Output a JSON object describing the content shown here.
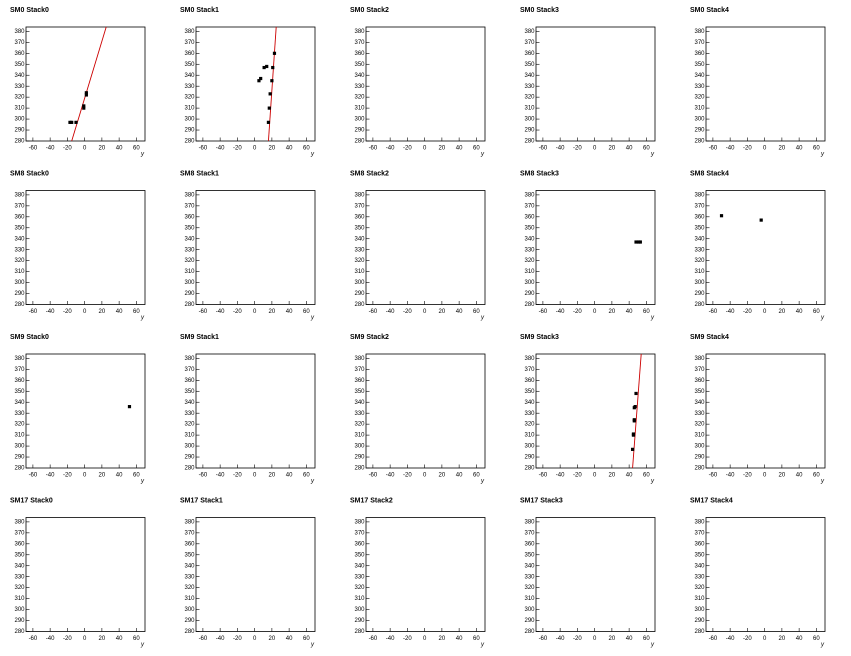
{
  "chart_data": [
    {
      "type": "scatter",
      "title": "SM0 Stack0",
      "x_label": "y",
      "color": "#000000",
      "fit_color": "#cc0000",
      "x": [
        -17,
        -15,
        -10,
        -1,
        -1,
        2,
        2
      ],
      "y": [
        297,
        297,
        297,
        310,
        312,
        322,
        324
      ],
      "fit_x": [
        -15,
        25
      ],
      "fit_y": [
        280,
        384
      ],
      "xlim": [
        -68,
        70
      ],
      "ylim": [
        280,
        384
      ],
      "xticks": [
        -60,
        -40,
        -20,
        0,
        20,
        40,
        60
      ],
      "yticks": [
        280,
        290,
        300,
        310,
        320,
        330,
        340,
        350,
        360,
        370,
        380
      ]
    },
    {
      "type": "scatter",
      "title": "SM0 Stack1",
      "x_label": "y",
      "color": "#000000",
      "fit_color": "#cc0000",
      "x": [
        5,
        7,
        11,
        14,
        16,
        17,
        18,
        20,
        21,
        23
      ],
      "y": [
        335,
        337,
        347,
        348,
        297,
        310,
        323,
        335,
        347,
        360
      ],
      "fit_x": [
        16,
        25
      ],
      "fit_y": [
        280,
        384
      ],
      "xlim": [
        -68,
        70
      ],
      "ylim": [
        280,
        384
      ],
      "xticks": [
        -60,
        -40,
        -20,
        0,
        20,
        40,
        60
      ],
      "yticks": [
        280,
        290,
        300,
        310,
        320,
        330,
        340,
        350,
        360,
        370,
        380
      ]
    },
    {
      "type": "scatter",
      "title": "SM0 Stack2",
      "x_label": "y",
      "color": "#000000",
      "x": [],
      "y": [],
      "xlim": [
        -68,
        70
      ],
      "ylim": [
        280,
        384
      ],
      "xticks": [
        -60,
        -40,
        -20,
        0,
        20,
        40,
        60
      ],
      "yticks": [
        280,
        290,
        300,
        310,
        320,
        330,
        340,
        350,
        360,
        370,
        380
      ]
    },
    {
      "type": "scatter",
      "title": "SM0 Stack3",
      "x_label": "y",
      "color": "#000000",
      "x": [],
      "y": [],
      "xlim": [
        -68,
        70
      ],
      "ylim": [
        280,
        384
      ],
      "xticks": [
        -60,
        -40,
        -20,
        0,
        20,
        40,
        60
      ],
      "yticks": [
        280,
        290,
        300,
        310,
        320,
        330,
        340,
        350,
        360,
        370,
        380
      ]
    },
    {
      "type": "scatter",
      "title": "SM0 Stack4",
      "x_label": "y",
      "color": "#000000",
      "x": [],
      "y": [],
      "xlim": [
        -68,
        70
      ],
      "ylim": [
        280,
        384
      ],
      "xticks": [
        -60,
        -40,
        -20,
        0,
        20,
        40,
        60
      ],
      "yticks": [
        280,
        290,
        300,
        310,
        320,
        330,
        340,
        350,
        360,
        370,
        380
      ]
    },
    {
      "type": "scatter",
      "title": "SM8 Stack0",
      "x_label": "y",
      "color": "#000000",
      "x": [],
      "y": [],
      "xlim": [
        -68,
        70
      ],
      "ylim": [
        280,
        384
      ],
      "xticks": [
        -60,
        -40,
        -20,
        0,
        20,
        40,
        60
      ],
      "yticks": [
        280,
        290,
        300,
        310,
        320,
        330,
        340,
        350,
        360,
        370,
        380
      ]
    },
    {
      "type": "scatter",
      "title": "SM8 Stack1",
      "x_label": "y",
      "color": "#000000",
      "x": [],
      "y": [],
      "xlim": [
        -68,
        70
      ],
      "ylim": [
        280,
        384
      ],
      "xticks": [
        -60,
        -40,
        -20,
        0,
        20,
        40,
        60
      ],
      "yticks": [
        280,
        290,
        300,
        310,
        320,
        330,
        340,
        350,
        360,
        370,
        380
      ]
    },
    {
      "type": "scatter",
      "title": "SM8 Stack2",
      "x_label": "y",
      "color": "#000000",
      "x": [],
      "y": [],
      "xlim": [
        -68,
        70
      ],
      "ylim": [
        280,
        384
      ],
      "xticks": [
        -60,
        -40,
        -20,
        0,
        20,
        40,
        60
      ],
      "yticks": [
        280,
        290,
        300,
        310,
        320,
        330,
        340,
        350,
        360,
        370,
        380
      ]
    },
    {
      "type": "scatter",
      "title": "SM8 Stack3",
      "x_label": "y",
      "color": "#000000",
      "x": [
        48,
        51,
        53
      ],
      "y": [
        337,
        337,
        337
      ],
      "xlim": [
        -68,
        70
      ],
      "ylim": [
        280,
        384
      ],
      "xticks": [
        -60,
        -40,
        -20,
        0,
        20,
        40,
        60
      ],
      "yticks": [
        280,
        290,
        300,
        310,
        320,
        330,
        340,
        350,
        360,
        370,
        380
      ]
    },
    {
      "type": "scatter",
      "title": "SM8 Stack4",
      "x_label": "y",
      "color": "#000000",
      "x": [
        -50,
        -4
      ],
      "y": [
        361,
        357
      ],
      "xlim": [
        -68,
        70
      ],
      "ylim": [
        280,
        384
      ],
      "xticks": [
        -60,
        -40,
        -20,
        0,
        20,
        40,
        60
      ],
      "yticks": [
        280,
        290,
        300,
        310,
        320,
        330,
        340,
        350,
        360,
        370,
        380
      ]
    },
    {
      "type": "scatter",
      "title": "SM9 Stack0",
      "x_label": "y",
      "color": "#000000",
      "x": [
        52
      ],
      "y": [
        336
      ],
      "xlim": [
        -68,
        70
      ],
      "ylim": [
        280,
        384
      ],
      "xticks": [
        -60,
        -40,
        -20,
        0,
        20,
        40,
        60
      ],
      "yticks": [
        280,
        290,
        300,
        310,
        320,
        330,
        340,
        350,
        360,
        370,
        380
      ]
    },
    {
      "type": "scatter",
      "title": "SM9 Stack1",
      "x_label": "y",
      "color": "#000000",
      "x": [],
      "y": [],
      "xlim": [
        -68,
        70
      ],
      "ylim": [
        280,
        384
      ],
      "xticks": [
        -60,
        -40,
        -20,
        0,
        20,
        40,
        60
      ],
      "yticks": [
        280,
        290,
        300,
        310,
        320,
        330,
        340,
        350,
        360,
        370,
        380
      ]
    },
    {
      "type": "scatter",
      "title": "SM9 Stack2",
      "x_label": "y",
      "color": "#000000",
      "x": [],
      "y": [],
      "xlim": [
        -68,
        70
      ],
      "ylim": [
        280,
        384
      ],
      "xticks": [
        -60,
        -40,
        -20,
        0,
        20,
        40,
        60
      ],
      "yticks": [
        280,
        290,
        300,
        310,
        320,
        330,
        340,
        350,
        360,
        370,
        380
      ]
    },
    {
      "type": "scatter",
      "title": "SM9 Stack3",
      "x_label": "y",
      "color": "#000000",
      "fit_color": "#cc0000",
      "x": [
        44,
        45,
        45,
        46,
        46,
        46,
        47,
        48
      ],
      "y": [
        297,
        310,
        311,
        323,
        324,
        335,
        336,
        348
      ],
      "fit_x": [
        44,
        54
      ],
      "fit_y": [
        280,
        384
      ],
      "xlim": [
        -68,
        70
      ],
      "ylim": [
        280,
        384
      ],
      "xticks": [
        -60,
        -40,
        -20,
        0,
        20,
        40,
        60
      ],
      "yticks": [
        280,
        290,
        300,
        310,
        320,
        330,
        340,
        350,
        360,
        370,
        380
      ]
    },
    {
      "type": "scatter",
      "title": "SM9 Stack4",
      "x_label": "y",
      "color": "#000000",
      "x": [],
      "y": [],
      "xlim": [
        -68,
        70
      ],
      "ylim": [
        280,
        384
      ],
      "xticks": [
        -60,
        -40,
        -20,
        0,
        20,
        40,
        60
      ],
      "yticks": [
        280,
        290,
        300,
        310,
        320,
        330,
        340,
        350,
        360,
        370,
        380
      ]
    },
    {
      "type": "scatter",
      "title": "SM17 Stack0",
      "x_label": "y",
      "color": "#000000",
      "x": [],
      "y": [],
      "xlim": [
        -68,
        70
      ],
      "ylim": [
        280,
        384
      ],
      "xticks": [
        -60,
        -40,
        -20,
        0,
        20,
        40,
        60
      ],
      "yticks": [
        280,
        290,
        300,
        310,
        320,
        330,
        340,
        350,
        360,
        370,
        380
      ]
    },
    {
      "type": "scatter",
      "title": "SM17 Stack1",
      "x_label": "y",
      "color": "#000000",
      "x": [],
      "y": [],
      "xlim": [
        -68,
        70
      ],
      "ylim": [
        280,
        384
      ],
      "xticks": [
        -60,
        -40,
        -20,
        0,
        20,
        40,
        60
      ],
      "yticks": [
        280,
        290,
        300,
        310,
        320,
        330,
        340,
        350,
        360,
        370,
        380
      ]
    },
    {
      "type": "scatter",
      "title": "SM17 Stack2",
      "x_label": "y",
      "color": "#000000",
      "x": [],
      "y": [],
      "xlim": [
        -68,
        70
      ],
      "ylim": [
        280,
        384
      ],
      "xticks": [
        -60,
        -40,
        -20,
        0,
        20,
        40,
        60
      ],
      "yticks": [
        280,
        290,
        300,
        310,
        320,
        330,
        340,
        350,
        360,
        370,
        380
      ]
    },
    {
      "type": "scatter",
      "title": "SM17 Stack3",
      "x_label": "y",
      "color": "#000000",
      "x": [],
      "y": [],
      "xlim": [
        -68,
        70
      ],
      "ylim": [
        280,
        384
      ],
      "xticks": [
        -60,
        -40,
        -20,
        0,
        20,
        40,
        60
      ],
      "yticks": [
        280,
        290,
        300,
        310,
        320,
        330,
        340,
        350,
        360,
        370,
        380
      ]
    },
    {
      "type": "scatter",
      "title": "SM17 Stack4",
      "x_label": "y",
      "color": "#000000",
      "x": [],
      "y": [],
      "xlim": [
        -68,
        70
      ],
      "ylim": [
        280,
        384
      ],
      "xticks": [
        -60,
        -40,
        -20,
        0,
        20,
        40,
        60
      ],
      "yticks": [
        280,
        290,
        300,
        310,
        320,
        330,
        340,
        350,
        360,
        370,
        380
      ]
    }
  ]
}
